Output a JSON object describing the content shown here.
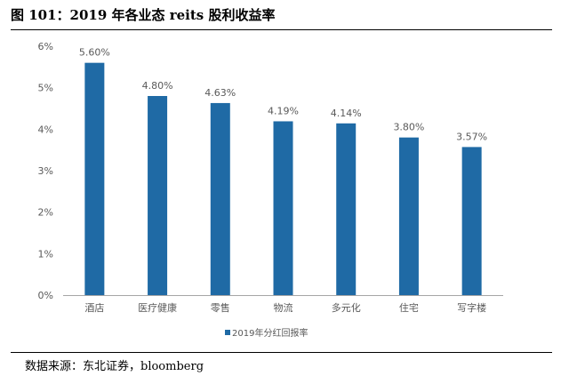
{
  "title": "图 101：2019 年各业态 reits 股利收益率",
  "source": "数据来源：东北证券，bloomberg",
  "chart_data": {
    "type": "bar",
    "categories": [
      "酒店",
      "医疗健康",
      "零售",
      "物流",
      "多元化",
      "住宅",
      "写字楼"
    ],
    "series": [
      {
        "name": "2019年分红回报率",
        "values": [
          5.6,
          4.8,
          4.63,
          4.19,
          4.14,
          3.8,
          3.57
        ]
      }
    ],
    "data_labels": [
      "5.60%",
      "4.80%",
      "4.63%",
      "4.19%",
      "4.14%",
      "3.80%",
      "3.57%"
    ],
    "y_ticks": [
      "0%",
      "1%",
      "2%",
      "3%",
      "4%",
      "5%",
      "6%"
    ],
    "ylim": [
      0,
      6
    ],
    "legend_position": "bottom",
    "bar_color": "#1f6aa5",
    "axis_color": "#a6a6a6",
    "text_color": "#595959"
  }
}
